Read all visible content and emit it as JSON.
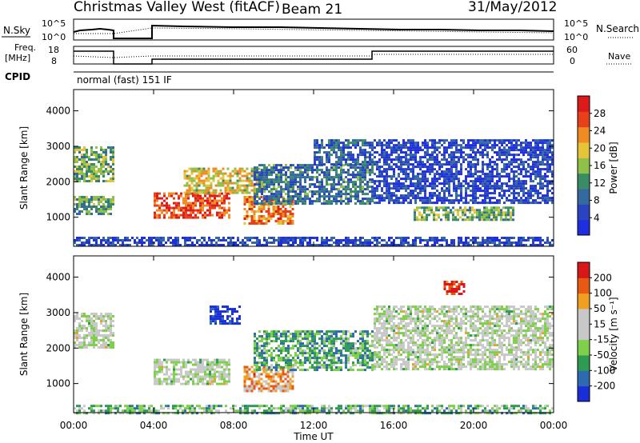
{
  "header": {
    "station": "Christmas Valley West (fitACF)",
    "beam": "Beam 21",
    "date": "31/May/2012"
  },
  "small_panels": {
    "nsky_label": "N.Sky",
    "nsearch_label": "N.Search",
    "count_ticks_left": [
      "10^5",
      "10^0"
    ],
    "count_ticks_right": [
      "10^5",
      "10^0"
    ],
    "freq_label_lines": [
      "Freq.",
      "[MHz]"
    ],
    "freq_ticks": [
      "18",
      "8"
    ],
    "nave_label": "Nave",
    "nave_ticks": [
      "60",
      "0"
    ],
    "cpid_label": "CPID",
    "cpid_text": "normal (fast) 151 IF"
  },
  "time_axis": {
    "label": "Time UT",
    "ticks": [
      "00:00",
      "04:00",
      "08:00",
      "12:00",
      "16:00",
      "20:00",
      "00:00"
    ]
  },
  "chart_data": [
    {
      "type": "heatmap",
      "name": "Power",
      "ylabel": "Slant Range [km]",
      "ylim": [
        180,
        4600
      ],
      "yticks": [
        "1000",
        "2000",
        "3000",
        "4000"
      ],
      "xlim_hours": [
        0,
        24
      ],
      "colorbar_label": "Power [dB]",
      "colorbar_ticks": [
        "28",
        "24",
        "20",
        "16",
        "12",
        "8",
        "4"
      ],
      "colors": [
        "#1f2ee0",
        "#2a44c0",
        "#356aa0",
        "#3a8c66",
        "#8fc04a",
        "#e6c43a",
        "#f08a22",
        "#e8401a",
        "#dc1a1a"
      ],
      "regions": [
        {
          "t": [
            0.0,
            2.0
          ],
          "r": [
            2000,
            3000
          ],
          "level": 0.45
        },
        {
          "t": [
            0.0,
            2.0
          ],
          "r": [
            1100,
            1600
          ],
          "level": 0.4
        },
        {
          "t": [
            4.0,
            7.8
          ],
          "r": [
            1000,
            1700
          ],
          "level": 0.85
        },
        {
          "t": [
            5.5,
            9.5
          ],
          "r": [
            1700,
            2400
          ],
          "level": 0.6
        },
        {
          "t": [
            8.5,
            11.0
          ],
          "r": [
            800,
            1600
          ],
          "level": 0.75
        },
        {
          "t": [
            9.0,
            15.0
          ],
          "r": [
            1400,
            2500
          ],
          "level": 0.3
        },
        {
          "t": [
            12.0,
            15.0
          ],
          "r": [
            2500,
            3200
          ],
          "level": 0.25
        },
        {
          "t": [
            15.0,
            24.0
          ],
          "r": [
            1400,
            3200
          ],
          "level": 0.15
        },
        {
          "t": [
            17.0,
            22.0
          ],
          "r": [
            900,
            1300
          ],
          "level": 0.45
        },
        {
          "t": [
            0.0,
            24.0
          ],
          "r": [
            180,
            450
          ],
          "level": 0.15
        }
      ]
    },
    {
      "type": "heatmap",
      "name": "Velocity",
      "ylabel": "Slant Range [km]",
      "ylim": [
        180,
        4600
      ],
      "yticks": [
        "1000",
        "2000",
        "3000",
        "4000"
      ],
      "xlim_hours": [
        0,
        24
      ],
      "colorbar_label": "Velocity [m s⁻¹]",
      "colorbar_ticks": [
        "200",
        "100",
        "50",
        "15",
        "-15",
        "-50",
        "-100",
        "-200"
      ],
      "colors": [
        "#1a2ed8",
        "#2e6ab0",
        "#2e9a52",
        "#7ed04a",
        "#c8c8c8",
        "#c8c8c8",
        "#f0a020",
        "#e85a14",
        "#d81818"
      ],
      "regions": [
        {
          "t": [
            0.0,
            2.0
          ],
          "r": [
            2000,
            3000
          ],
          "level": 0.5
        },
        {
          "t": [
            4.0,
            7.8
          ],
          "r": [
            1000,
            1700
          ],
          "level": 0.5
        },
        {
          "t": [
            6.8,
            8.3
          ],
          "r": [
            2700,
            3200
          ],
          "level": 0.05
        },
        {
          "t": [
            8.5,
            11.0
          ],
          "r": [
            800,
            1500
          ],
          "level": 0.72
        },
        {
          "t": [
            9.0,
            15.0
          ],
          "r": [
            1400,
            2500
          ],
          "level": 0.3
        },
        {
          "t": [
            15.0,
            24.0
          ],
          "r": [
            1400,
            3200
          ],
          "level": 0.5
        },
        {
          "t": [
            18.5,
            19.5
          ],
          "r": [
            3500,
            3900
          ],
          "level": 0.95
        },
        {
          "t": [
            0.0,
            24.0
          ],
          "r": [
            180,
            400
          ],
          "level": 0.35
        }
      ]
    }
  ]
}
